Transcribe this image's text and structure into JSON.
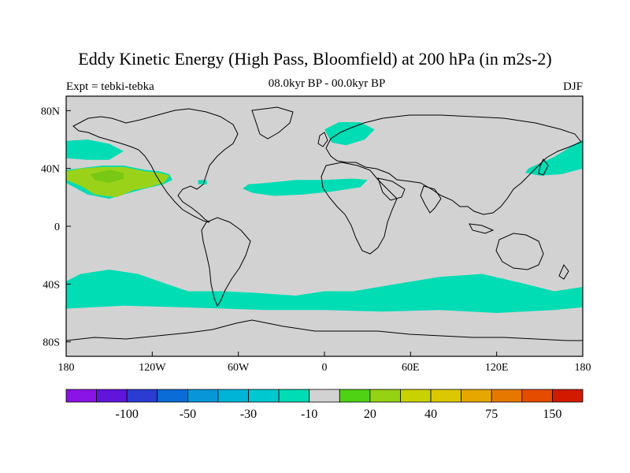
{
  "header": {
    "title": "Eddy Kinetic Energy (High Pass, Bloomfield) at 200 hPa (in m2s-2)",
    "experiment": "Expt = tebki-tebka",
    "period": "08.0kyr BP - 00.0kyr BP",
    "season": "DJF"
  },
  "map": {
    "projection": "cylindrical equidistant",
    "lon_range": [
      -180,
      180
    ],
    "lat_range": [
      -90,
      90
    ],
    "lat_ticks": [
      {
        "value": 80,
        "label": "80N"
      },
      {
        "value": 40,
        "label": "40N"
      },
      {
        "value": 0,
        "label": "0"
      },
      {
        "value": -40,
        "label": "40S"
      },
      {
        "value": -80,
        "label": "80S"
      }
    ],
    "lon_ticks": [
      {
        "value": -180,
        "label": "180"
      },
      {
        "value": -120,
        "label": "120W"
      },
      {
        "value": -60,
        "label": "60W"
      },
      {
        "value": 0,
        "label": "0"
      },
      {
        "value": 60,
        "label": "60E"
      },
      {
        "value": 120,
        "label": "120E"
      },
      {
        "value": 180,
        "label": "180"
      }
    ],
    "background_color": "#d2d2d2",
    "anomaly_regions": [
      {
        "name": "north-pacific-east-band",
        "fill": "#00dcb4",
        "poly": [
          [
            -180,
            59
          ],
          [
            -165,
            60
          ],
          [
            -150,
            57
          ],
          [
            -140,
            52
          ],
          [
            -150,
            46
          ],
          [
            -165,
            46
          ],
          [
            -180,
            47
          ]
        ]
      },
      {
        "name": "north-pacific-positive-outer",
        "fill": "#9ad21a",
        "poly": [
          [
            -180,
            38
          ],
          [
            -170,
            40
          ],
          [
            -155,
            41
          ],
          [
            -140,
            41
          ],
          [
            -125,
            38
          ],
          [
            -115,
            37
          ],
          [
            -108,
            35
          ],
          [
            -112,
            30
          ],
          [
            -122,
            27
          ],
          [
            -133,
            25
          ],
          [
            -145,
            20
          ],
          [
            -160,
            22
          ],
          [
            -170,
            28
          ],
          [
            -180,
            32
          ]
        ]
      },
      {
        "name": "north-pacific-positive-inner",
        "fill": "#78c814",
        "poly": [
          [
            -163,
            36
          ],
          [
            -150,
            39
          ],
          [
            -140,
            37
          ],
          [
            -140,
            33
          ],
          [
            -150,
            30
          ],
          [
            -160,
            32
          ]
        ]
      },
      {
        "name": "north-pacific-blue-ring",
        "fill": "#00dcb4",
        "poly": [
          [
            -180,
            39
          ],
          [
            -155,
            42
          ],
          [
            -140,
            42
          ],
          [
            -125,
            39
          ],
          [
            -115,
            38
          ],
          [
            -108,
            36
          ],
          [
            -106,
            32
          ],
          [
            -112,
            29
          ],
          [
            -125,
            26
          ],
          [
            -140,
            22
          ],
          [
            -150,
            19
          ],
          [
            -165,
            22
          ],
          [
            -180,
            30
          ]
        ]
      },
      {
        "name": "north-atlantic-band",
        "fill": "#00dcb4",
        "poly": [
          [
            -53,
            29
          ],
          [
            -40,
            30
          ],
          [
            -20,
            32
          ],
          [
            0,
            32
          ],
          [
            20,
            33
          ],
          [
            30,
            32
          ],
          [
            25,
            27
          ],
          [
            5,
            24
          ],
          [
            -15,
            22
          ],
          [
            -35,
            21
          ],
          [
            -50,
            23
          ],
          [
            -57,
            26
          ]
        ]
      },
      {
        "name": "atlantic-small-patch",
        "fill": "#00dcb4",
        "poly": [
          [
            -88,
            32
          ],
          [
            -82,
            32
          ],
          [
            -82,
            29
          ],
          [
            -88,
            29
          ]
        ]
      },
      {
        "name": "scandinavia-patch",
        "fill": "#00dcb4",
        "poly": [
          [
            0,
            67
          ],
          [
            10,
            72
          ],
          [
            25,
            72
          ],
          [
            35,
            67
          ],
          [
            28,
            60
          ],
          [
            15,
            56
          ],
          [
            5,
            58
          ]
        ]
      },
      {
        "name": "west-pacific-patch",
        "fill": "#00dcb4",
        "poly": [
          [
            142,
            40
          ],
          [
            160,
            48
          ],
          [
            180,
            60
          ],
          [
            180,
            40
          ],
          [
            165,
            36
          ],
          [
            150,
            35
          ],
          [
            140,
            37
          ]
        ]
      },
      {
        "name": "southern-ocean-band",
        "fill": "#00dcb4",
        "poly": [
          [
            -180,
            -38
          ],
          [
            -170,
            -33
          ],
          [
            -150,
            -30
          ],
          [
            -130,
            -33
          ],
          [
            -110,
            -40
          ],
          [
            -95,
            -45
          ],
          [
            -70,
            -45
          ],
          [
            -50,
            -46
          ],
          [
            -20,
            -48
          ],
          [
            0,
            -45
          ],
          [
            20,
            -45
          ],
          [
            50,
            -40
          ],
          [
            80,
            -35
          ],
          [
            110,
            -33
          ],
          [
            140,
            -40
          ],
          [
            160,
            -45
          ],
          [
            180,
            -42
          ],
          [
            180,
            -56
          ],
          [
            160,
            -58
          ],
          [
            120,
            -60
          ],
          [
            80,
            -58
          ],
          [
            40,
            -59
          ],
          [
            0,
            -58
          ],
          [
            -40,
            -58
          ],
          [
            -70,
            -57
          ],
          [
            -100,
            -56
          ],
          [
            -140,
            -55
          ],
          [
            -180,
            -57
          ]
        ]
      }
    ]
  },
  "colorbar": {
    "labels": [
      "-100",
      "-50",
      "-30",
      "-10",
      "20",
      "40",
      "75",
      "150"
    ],
    "colors": [
      "#8a14e6",
      "#6014dc",
      "#2a3cd2",
      "#0a6cd6",
      "#0896d8",
      "#00b4d8",
      "#00c8d0",
      "#00dcb4",
      "#d2d2d2",
      "#50d214",
      "#96d214",
      "#c8d200",
      "#dcc800",
      "#e6a800",
      "#e67800",
      "#e64c00",
      "#d21a00"
    ],
    "label_after_box": [
      1,
      3,
      5,
      7,
      9,
      11,
      13,
      15
    ]
  }
}
